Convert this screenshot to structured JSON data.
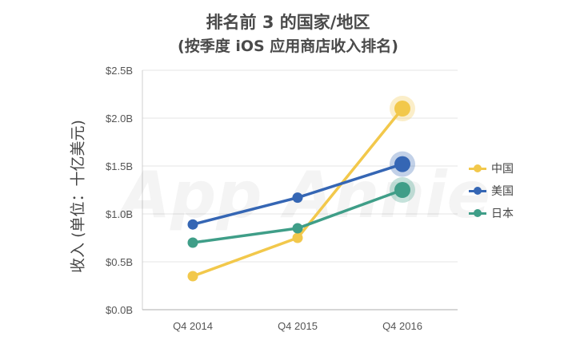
{
  "chart_data": {
    "type": "line",
    "title": "排名前 3 的国家/地区",
    "subtitle": "(按季度 iOS 应用商店收入排名)",
    "ylabel": "收入 (单位：十亿美元)",
    "xlabel": "",
    "categories": [
      "Q4 2014",
      "Q4 2015",
      "Q4 2016"
    ],
    "y_ticks": [
      "$0.0B",
      "$0.5B",
      "$1.0B",
      "$1.5B",
      "$2.0B",
      "$2.5B"
    ],
    "ylim": [
      0,
      2.5
    ],
    "grid": true,
    "legend_position": "right",
    "watermark": "App Annie",
    "series": [
      {
        "name": "中国",
        "color": "#F2C84B",
        "values": [
          0.35,
          0.75,
          2.1
        ]
      },
      {
        "name": "美国",
        "color": "#3566B4",
        "values": [
          0.89,
          1.17,
          1.52
        ]
      },
      {
        "name": "日本",
        "color": "#3F9E88",
        "values": [
          0.7,
          0.85,
          1.25
        ]
      }
    ]
  }
}
